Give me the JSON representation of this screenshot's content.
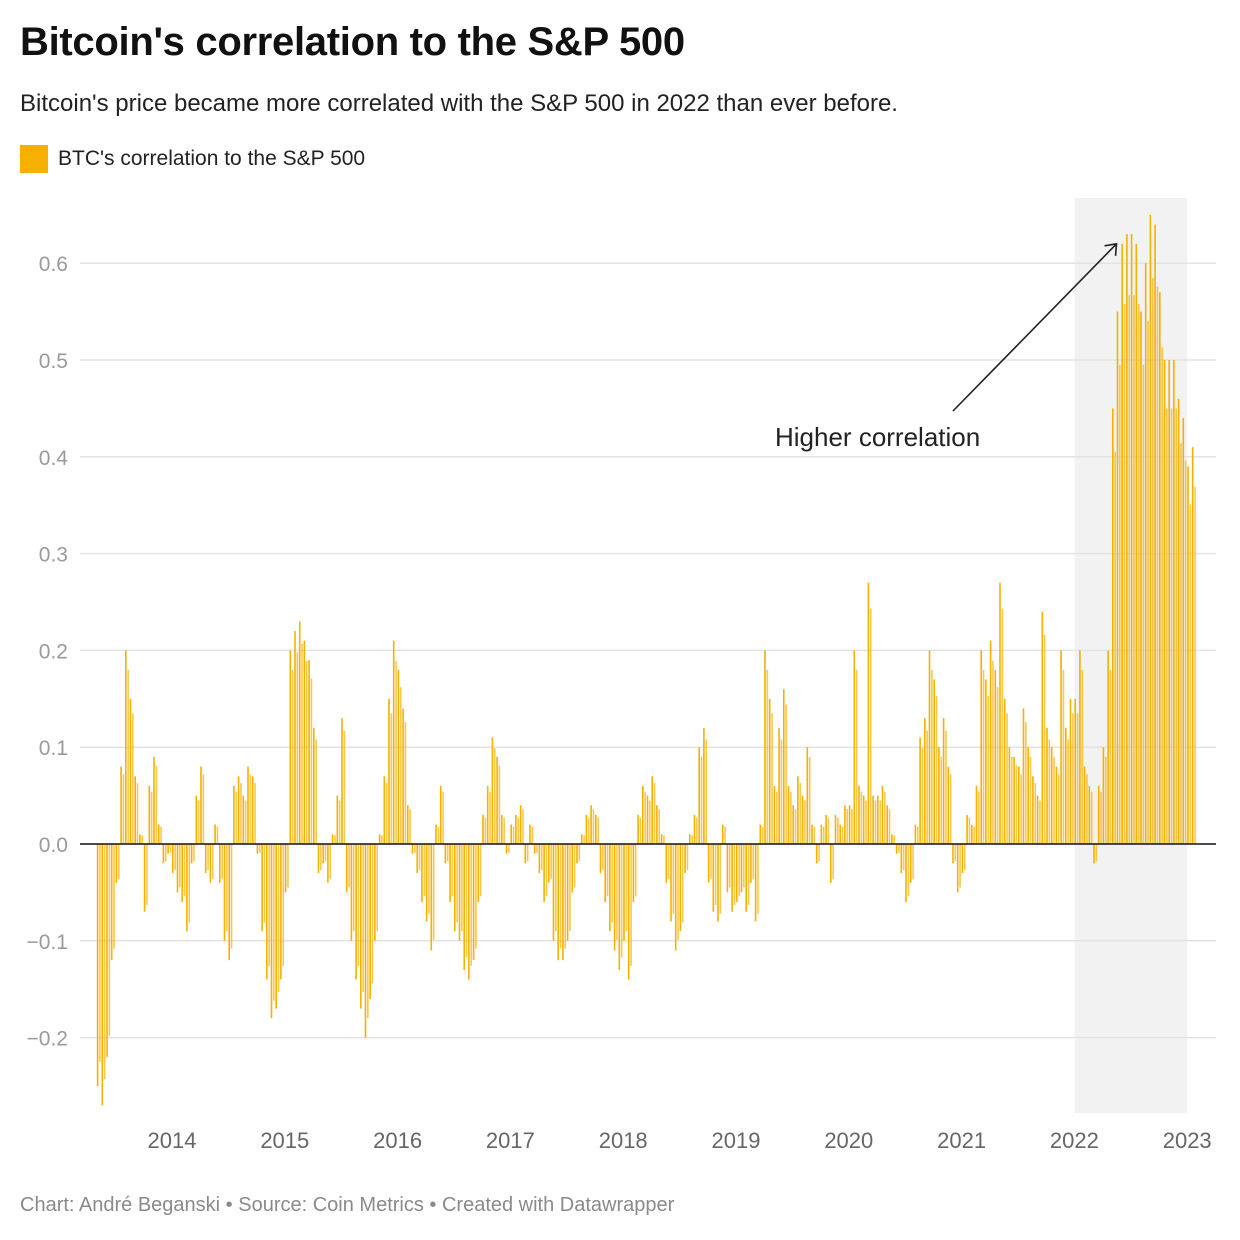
{
  "title": "Bitcoin's correlation to the S&P 500",
  "subtitle": "Bitcoin's price became more correlated with the S&P 500 in 2022 than ever before.",
  "footer": "Chart: André Beganski • Source: Coin Metrics • Created with Datawrapper",
  "colors": {
    "bar": "#f5b000",
    "highlight": "#f2f2f2",
    "grid": "#e3e3e3",
    "zero_line": "#111111"
  },
  "chart_data": {
    "type": "bar",
    "title": "Bitcoin's correlation to the S&P 500",
    "xlabel": "",
    "ylabel": "",
    "ylim": [
      -0.28,
      0.66
    ],
    "xlim": [
      2013,
      2023.1
    ],
    "grid": true,
    "legend": {
      "position": "top-left",
      "entries": [
        "BTC's correlation to the  S&P 500"
      ]
    },
    "yticks": [
      "−0.2",
      "−0.1",
      "0.0",
      "0.1",
      "0.2",
      "0.3",
      "0.4",
      "0.5",
      "0.6"
    ],
    "ytick_values": [
      -0.2,
      -0.1,
      0,
      0.1,
      0.2,
      0.3,
      0.4,
      0.5,
      0.6
    ],
    "xticks": [
      "2014",
      "2015",
      "2016",
      "2017",
      "2018",
      "2019",
      "2020",
      "2021",
      "2022",
      "2023"
    ],
    "highlight_range": [
      "2022",
      "2023"
    ],
    "annotation": {
      "text": "Higher correlation",
      "points_to": {
        "x": 2022.4,
        "y": 0.62
      }
    },
    "series": [
      {
        "name": "BTC's correlation to the  S&P 500",
        "values_by_year": {
          "2013": [
            null,
            null,
            null,
            null,
            null,
            null,
            null,
            null,
            -0.25,
            -0.27,
            -0.22,
            -0.12,
            -0.04,
            0.08,
            0.2,
            0.15,
            0.07,
            0.01,
            -0.07,
            0.06,
            0.09,
            0.02,
            -0.02,
            -0.01
          ],
          "2014": [
            -0.03,
            -0.05,
            -0.06,
            -0.09,
            -0.02,
            0.05,
            0.08,
            -0.03,
            -0.04,
            0.02,
            -0.04,
            -0.1,
            -0.12,
            0.06,
            0.07,
            0.05,
            0.08,
            0.07,
            -0.01,
            -0.09,
            -0.14,
            -0.18,
            -0.17,
            -0.14
          ],
          "2015": [
            -0.05,
            0.2,
            0.22,
            0.23,
            0.21,
            0.19,
            0.12,
            -0.03,
            -0.02,
            -0.04,
            0.01,
            0.05,
            0.13,
            -0.05,
            -0.1,
            -0.14,
            -0.17,
            -0.2,
            -0.16,
            -0.1,
            0.01,
            0.07,
            0.15,
            0.21
          ],
          "2016": [
            0.18,
            0.14,
            0.04,
            -0.01,
            -0.03,
            -0.06,
            -0.08,
            -0.11,
            0.02,
            0.06,
            -0.02,
            -0.06,
            -0.09,
            -0.1,
            -0.13,
            -0.14,
            -0.12,
            -0.06,
            0.03,
            0.06,
            0.11,
            0.09,
            0.03,
            -0.01
          ],
          "2017": [
            0.02,
            0.03,
            0.04,
            -0.02,
            0.02,
            -0.01,
            -0.03,
            -0.06,
            -0.04,
            -0.1,
            -0.12,
            -0.12,
            -0.1,
            -0.05,
            -0.02,
            0.01,
            0.03,
            0.04,
            0.03,
            -0.03,
            -0.06,
            -0.09,
            -0.11,
            -0.13
          ],
          "2018": [
            -0.1,
            -0.14,
            -0.06,
            0.03,
            0.06,
            0.05,
            0.07,
            0.04,
            0.01,
            -0.04,
            -0.08,
            -0.11,
            -0.09,
            -0.03,
            0.01,
            0.03,
            0.1,
            0.12,
            -0.04,
            -0.07,
            -0.08,
            0.02,
            -0.05,
            -0.07
          ],
          "2019": [
            -0.06,
            -0.05,
            -0.07,
            -0.04,
            -0.08,
            0.02,
            0.2,
            0.15,
            0.06,
            0.12,
            0.16,
            0.06,
            0.04,
            0.07,
            0.05,
            0.1,
            0.02,
            -0.02,
            0.02,
            0.03,
            -0.04,
            0.03,
            0.02,
            0.04
          ],
          "2020": [
            0.04,
            0.2,
            0.06,
            0.05,
            0.27,
            0.05,
            0.05,
            0.06,
            0.04,
            0.01,
            -0.01,
            -0.03,
            -0.06,
            -0.04,
            0.02,
            0.11,
            0.13,
            0.2,
            0.17,
            0.1,
            0.13,
            0.08,
            -0.02,
            -0.05
          ],
          "2021": [
            -0.03,
            0.03,
            0.02,
            0.06,
            0.2,
            0.17,
            0.21,
            0.18,
            0.27,
            0.15,
            0.1,
            0.09,
            0.08,
            0.14,
            0.1,
            0.07,
            0.05,
            0.24,
            0.12,
            0.1,
            0.08,
            0.2,
            0.12,
            0.15
          ],
          "2022": [
            0.15,
            0.2,
            0.08,
            0.06,
            -0.02,
            0.06,
            0.1,
            0.2,
            0.45,
            0.55,
            0.62,
            0.63,
            0.63,
            0.62,
            0.55,
            0.6,
            0.65,
            0.64,
            0.57,
            0.5,
            0.5,
            0.5,
            0.46,
            0.44
          ],
          "2023": [
            0.39,
            0.41
          ]
        }
      }
    ]
  }
}
